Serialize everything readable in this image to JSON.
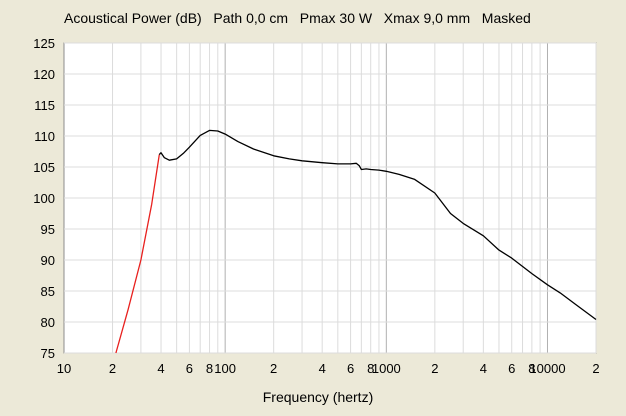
{
  "title": "Acoustical Power (dB)   Path 0,0 cm   Pmax 30 W   Xmax 9,0 mm   Masked",
  "chart_data": {
    "type": "line",
    "title": "Acoustical Power (dB)   Path 0,0 cm   Pmax 30 W   Xmax 9,0 mm   Masked",
    "xlabel": "Frequency (hertz)",
    "ylabel": "",
    "xscale": "log",
    "xlim": [
      10,
      20000
    ],
    "ylim": [
      75,
      125
    ],
    "grid": true,
    "yticks": [
      "75",
      "80",
      "85",
      "90",
      "95",
      "100",
      "105",
      "110",
      "115",
      "120",
      "125"
    ],
    "xticks": [
      {
        "v": 10,
        "label": "10"
      },
      {
        "v": 20,
        "label": "2"
      },
      {
        "v": 40,
        "label": "4"
      },
      {
        "v": 60,
        "label": "6"
      },
      {
        "v": 80,
        "label": "8"
      },
      {
        "v": 100,
        "label": "100"
      },
      {
        "v": 200,
        "label": "2"
      },
      {
        "v": 400,
        "label": "4"
      },
      {
        "v": 600,
        "label": "6"
      },
      {
        "v": 800,
        "label": "8"
      },
      {
        "v": 1000,
        "label": "1000"
      },
      {
        "v": 2000,
        "label": "2"
      },
      {
        "v": 4000,
        "label": "4"
      },
      {
        "v": 6000,
        "label": "6"
      },
      {
        "v": 8000,
        "label": "8"
      },
      {
        "v": 10000,
        "label": "10000"
      },
      {
        "v": 20000,
        "label": "2"
      }
    ],
    "series": [
      {
        "color": "#e8201e",
        "x": [
          21,
          25,
          30,
          35,
          39
        ],
        "y": [
          75,
          82,
          90,
          99,
          107
        ]
      },
      {
        "color": "#000000",
        "x": [
          39,
          40,
          42,
          45,
          50,
          55,
          60,
          70,
          80,
          90,
          100,
          120,
          150,
          200,
          250,
          300,
          400,
          500,
          600,
          650,
          680,
          700,
          750,
          800,
          900,
          1000,
          1200,
          1500,
          2000,
          2500,
          3000,
          4000,
          5000,
          6000,
          8000,
          10000,
          12000,
          15000,
          20000
        ],
        "y": [
          107,
          107.3,
          106.5,
          106.1,
          106.3,
          107.2,
          108.2,
          110.1,
          110.9,
          110.8,
          110.3,
          109.1,
          107.9,
          106.8,
          106.3,
          106.0,
          105.7,
          105.5,
          105.5,
          105.6,
          105.2,
          104.6,
          104.7,
          104.6,
          104.5,
          104.3,
          103.8,
          103.0,
          100.8,
          97.5,
          95.9,
          93.9,
          91.6,
          90.3,
          87.8,
          86.0,
          84.7,
          82.8,
          80.4
        ]
      }
    ]
  }
}
